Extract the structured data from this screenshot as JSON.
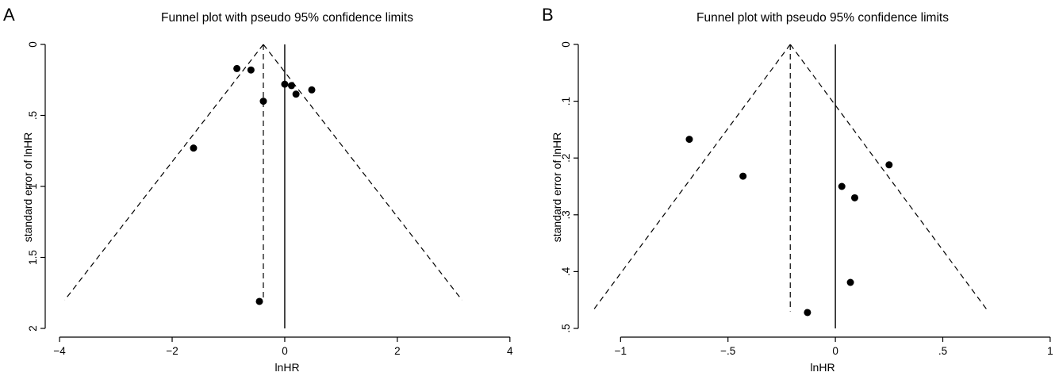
{
  "chart_data": [
    {
      "type": "scatter",
      "panel_label": "A",
      "title": "Funnel plot with pseudo 95% confidence limits",
      "xlabel": "lnHR",
      "ylabel": "standard error of lnHR",
      "xlim": [
        -4.1,
        4.2
      ],
      "ylim": [
        0,
        2
      ],
      "y_reversed": true,
      "x_ticks": [
        -4,
        -2,
        0,
        2,
        4
      ],
      "x_tick_labels": [
        "−4",
        "−2",
        "0",
        "2",
        "4"
      ],
      "y_ticks": [
        0,
        0.5,
        1,
        1.5,
        2
      ],
      "y_tick_labels": [
        "0",
        ".5",
        "1",
        "1.5",
        "2"
      ],
      "grid": false,
      "pooled_estimate": -0.38,
      "funnel_max_se": 1.8,
      "null_line": 0,
      "points": [
        {
          "x": -0.85,
          "y": 0.17
        },
        {
          "x": -0.6,
          "y": 0.18
        },
        {
          "x": -0.38,
          "y": 0.4
        },
        {
          "x": 0.0,
          "y": 0.28
        },
        {
          "x": 0.12,
          "y": 0.29
        },
        {
          "x": 0.2,
          "y": 0.35
        },
        {
          "x": 0.48,
          "y": 0.32
        },
        {
          "x": -1.62,
          "y": 0.73
        },
        {
          "x": -0.45,
          "y": 1.81
        }
      ]
    },
    {
      "type": "scatter",
      "panel_label": "B",
      "title": "Funnel plot with pseudo 95% confidence limits",
      "xlabel": "lnHR",
      "ylabel": "standard error of lnHR",
      "xlim": [
        -1.16,
        1.03
      ],
      "ylim": [
        0,
        0.5
      ],
      "y_reversed": true,
      "x_ticks": [
        -1,
        -0.5,
        0,
        0.5,
        1
      ],
      "x_tick_labels": [
        "−1",
        "−.5",
        "0",
        ".5",
        "1"
      ],
      "y_ticks": [
        0,
        0.1,
        0.2,
        0.3,
        0.4,
        0.5
      ],
      "y_tick_labels": [
        "0",
        ".1",
        ".2",
        ".3",
        ".4",
        ".5"
      ],
      "grid": false,
      "pooled_estimate": -0.21,
      "funnel_max_se": 0.47,
      "null_line": 0,
      "points": [
        {
          "x": -0.68,
          "y": 0.167
        },
        {
          "x": -0.43,
          "y": 0.232
        },
        {
          "x": 0.03,
          "y": 0.25
        },
        {
          "x": 0.09,
          "y": 0.27
        },
        {
          "x": 0.25,
          "y": 0.212
        },
        {
          "x": 0.07,
          "y": 0.419
        },
        {
          "x": -0.13,
          "y": 0.472
        }
      ]
    }
  ]
}
